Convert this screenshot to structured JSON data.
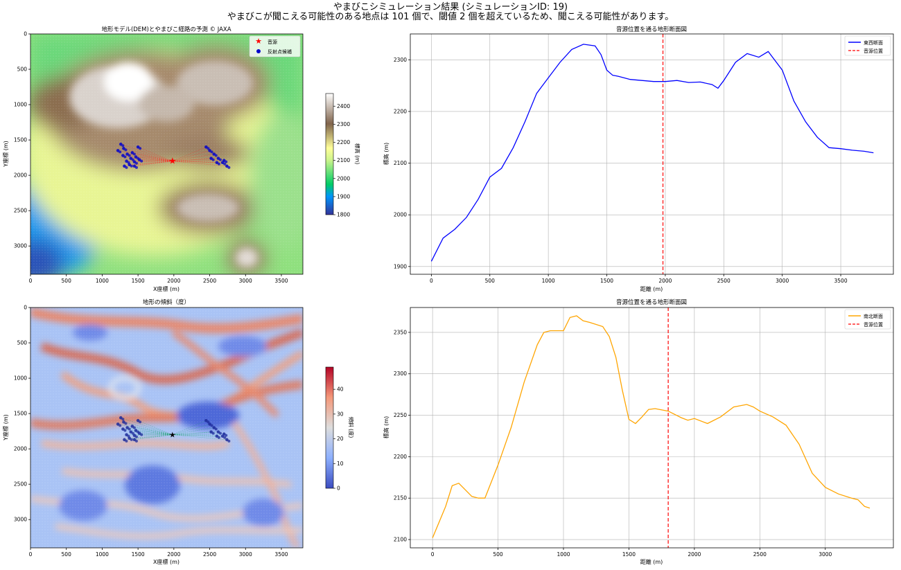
{
  "figure": {
    "title_line1": "やまびこシミュレーション結果 (シミュレーションID: 19)",
    "title_line2": "やまびこが聞こえる可能性のある地点は 101 個で、閾値 2 個を超えているため、聞こえる可能性があります。"
  },
  "colors": {
    "ew_line": "#0000ff",
    "ns_line": "#ffa500",
    "source_line": "#ff0000",
    "reflect_points": "#0000cc",
    "grid": "#b0b0b0"
  },
  "chart_data": [
    {
      "id": "dem",
      "type": "heatmap",
      "title": "地形モデル(DEM)とやまびこ経路の予測 © JAXA",
      "xlabel": "X座標 (m)",
      "ylabel": "Y座標 (m)",
      "xlim": [
        0,
        3800
      ],
      "ylim": [
        3400,
        0
      ],
      "xticks": [
        0,
        500,
        1000,
        1500,
        2000,
        2500,
        3000,
        3500
      ],
      "yticks": [
        0,
        500,
        1000,
        1500,
        2000,
        2500,
        3000
      ],
      "colormap": "terrain",
      "colorbar": {
        "label": "標高 (m)",
        "range": [
          1800,
          2470
        ],
        "ticks": [
          1800,
          1900,
          2000,
          2100,
          2200,
          2300,
          2400
        ]
      },
      "legend": {
        "position": "upper right",
        "entries": [
          "音源",
          "反射点候補"
        ]
      },
      "source": {
        "x": 1980,
        "y": 1800
      },
      "reflection_points_shown": [
        [
          1260,
          1560
        ],
        [
          1300,
          1620
        ],
        [
          1220,
          1650
        ],
        [
          1350,
          1700
        ],
        [
          1400,
          1760
        ],
        [
          1450,
          1810
        ],
        [
          1380,
          1850
        ],
        [
          1500,
          1600
        ],
        [
          1290,
          1720
        ],
        [
          1420,
          1680
        ],
        [
          1470,
          1740
        ],
        [
          1520,
          1780
        ],
        [
          1340,
          1800
        ],
        [
          1450,
          1870
        ],
        [
          1310,
          1870
        ],
        [
          2450,
          1600
        ],
        [
          2500,
          1650
        ],
        [
          2560,
          1700
        ],
        [
          2620,
          1760
        ],
        [
          2680,
          1820
        ],
        [
          2740,
          1870
        ],
        [
          2600,
          1820
        ],
        [
          2520,
          1760
        ],
        [
          2700,
          1790
        ]
      ]
    },
    {
      "id": "ew",
      "type": "line",
      "title": "音源位置を通る地形断面図",
      "xlabel": "距離 (m)",
      "ylabel": "標高 (m)",
      "xlim": [
        -180,
        3950
      ],
      "ylim": [
        1885,
        2350
      ],
      "xticks": [
        0,
        500,
        1000,
        1500,
        2000,
        2500,
        3000,
        3500
      ],
      "yticks": [
        1900,
        2000,
        2100,
        2200,
        2300
      ],
      "grid": true,
      "legend": {
        "position": "top-right"
      },
      "series": [
        {
          "name": "東西断面",
          "x": [
            0,
            100,
            200,
            300,
            400,
            500,
            600,
            700,
            800,
            900,
            1000,
            1100,
            1200,
            1300,
            1400,
            1450,
            1500,
            1550,
            1600,
            1700,
            1800,
            1900,
            2000,
            2100,
            2200,
            2300,
            2400,
            2450,
            2500,
            2600,
            2700,
            2800,
            2880,
            3000,
            3100,
            3200,
            3300,
            3400,
            3500,
            3600,
            3700,
            3780
          ],
          "y": [
            1910,
            1955,
            1972,
            1995,
            2030,
            2073,
            2090,
            2130,
            2180,
            2235,
            2265,
            2295,
            2320,
            2330,
            2327,
            2310,
            2280,
            2270,
            2268,
            2262,
            2260,
            2258,
            2258,
            2260,
            2256,
            2257,
            2252,
            2245,
            2260,
            2295,
            2312,
            2305,
            2316,
            2280,
            2220,
            2180,
            2150,
            2130,
            2128,
            2125,
            2123,
            2120
          ]
        },
        {
          "name": "音源位置",
          "x_position": 1980
        }
      ]
    },
    {
      "id": "slope",
      "type": "heatmap",
      "title": "地形の傾斜（度）",
      "xlabel": "X座標 (m)",
      "ylabel": "Y座標 (m)",
      "xlim": [
        0,
        3800
      ],
      "ylim": [
        3400,
        0
      ],
      "xticks": [
        0,
        500,
        1000,
        1500,
        2000,
        2500,
        3000,
        3500
      ],
      "yticks": [
        0,
        500,
        1000,
        1500,
        2000,
        2500,
        3000
      ],
      "colormap": "coolwarm",
      "colorbar": {
        "label": "傾斜 (度)",
        "range": [
          0,
          49
        ],
        "ticks": [
          0,
          10,
          20,
          30,
          40
        ]
      },
      "source": {
        "x": 1980,
        "y": 1800
      }
    },
    {
      "id": "ns",
      "type": "line",
      "title": "音源位置を通る地形断面図",
      "xlabel": "距離 (m)",
      "ylabel": "標高 (m)",
      "xlim": [
        -170,
        3520
      ],
      "ylim": [
        2090,
        2380
      ],
      "xticks": [
        0,
        500,
        1000,
        1500,
        2000,
        2500,
        3000
      ],
      "yticks": [
        2100,
        2150,
        2200,
        2250,
        2300,
        2350
      ],
      "grid": true,
      "legend": {
        "position": "top-right"
      },
      "series": [
        {
          "name": "南北断面",
          "x": [
            0,
            100,
            150,
            200,
            250,
            300,
            350,
            400,
            500,
            600,
            700,
            800,
            850,
            900,
            1000,
            1050,
            1100,
            1150,
            1200,
            1300,
            1350,
            1400,
            1450,
            1500,
            1550,
            1600,
            1650,
            1700,
            1800,
            1900,
            1950,
            2000,
            2100,
            2200,
            2300,
            2400,
            2450,
            2500,
            2600,
            2700,
            2800,
            2900,
            3000,
            3100,
            3200,
            3250,
            3300,
            3340
          ],
          "y": [
            2102,
            2140,
            2165,
            2168,
            2160,
            2152,
            2150,
            2150,
            2190,
            2235,
            2290,
            2335,
            2350,
            2352,
            2352,
            2368,
            2370,
            2364,
            2362,
            2357,
            2345,
            2320,
            2280,
            2245,
            2240,
            2248,
            2257,
            2258,
            2255,
            2247,
            2244,
            2246,
            2240,
            2248,
            2260,
            2263,
            2260,
            2255,
            2248,
            2238,
            2215,
            2180,
            2163,
            2155,
            2150,
            2148,
            2140,
            2138
          ]
        },
        {
          "name": "音源位置",
          "x_position": 1800
        }
      ]
    }
  ]
}
